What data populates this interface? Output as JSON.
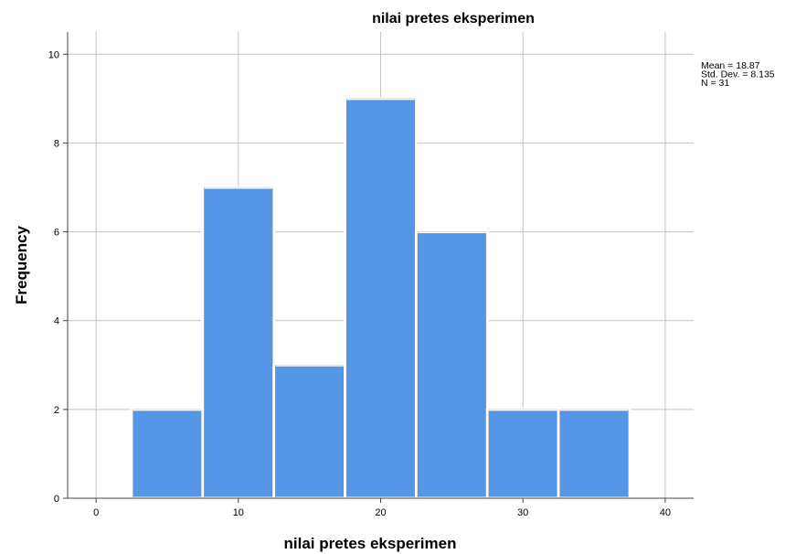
{
  "chart_data": {
    "type": "bar",
    "title": "nilai pretes eksperimen",
    "xlabel": "nilai pretes eksperimen",
    "ylabel": "Frequency",
    "bins": [
      {
        "start": 2.5,
        "end": 7.5,
        "value": 2
      },
      {
        "start": 7.5,
        "end": 12.5,
        "value": 7
      },
      {
        "start": 12.5,
        "end": 17.5,
        "value": 3
      },
      {
        "start": 17.5,
        "end": 22.5,
        "value": 9
      },
      {
        "start": 22.5,
        "end": 27.5,
        "value": 6
      },
      {
        "start": 27.5,
        "end": 32.5,
        "value": 2
      },
      {
        "start": 32.5,
        "end": 37.5,
        "value": 2
      }
    ],
    "xlim": [
      -2,
      42
    ],
    "ylim": [
      0,
      10.5
    ],
    "xticks": [
      "0",
      "10",
      "20",
      "30",
      "40"
    ],
    "yticks": [
      "0",
      "2",
      "4",
      "6",
      "8",
      "10"
    ],
    "grid": true,
    "bar_color": "#5596e6",
    "stats": [
      "Mean = 18.87",
      "Std. Dev. = 8.135",
      "N = 31"
    ]
  }
}
